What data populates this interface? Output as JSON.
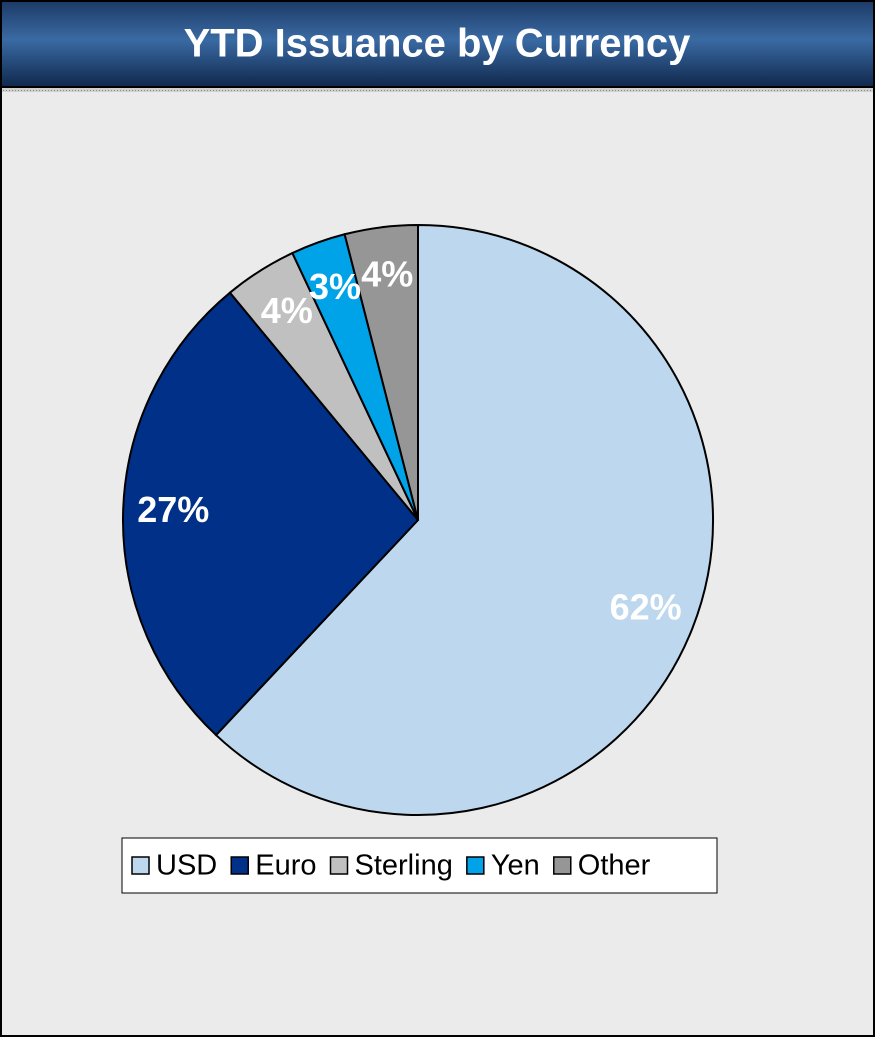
{
  "chart_data": {
    "type": "pie",
    "title": "YTD Issuance by Currency",
    "categories": [
      "USD",
      "Euro",
      "Sterling",
      "Yen",
      "Other"
    ],
    "values": [
      62,
      27,
      4,
      3,
      4
    ],
    "value_labels": [
      "62%",
      "27%",
      "4%",
      "3%",
      "4%"
    ],
    "colors": [
      "#bdd7ee",
      "#003087",
      "#c0c0c0",
      "#00a2e8",
      "#969696"
    ],
    "legend": "bottom"
  }
}
